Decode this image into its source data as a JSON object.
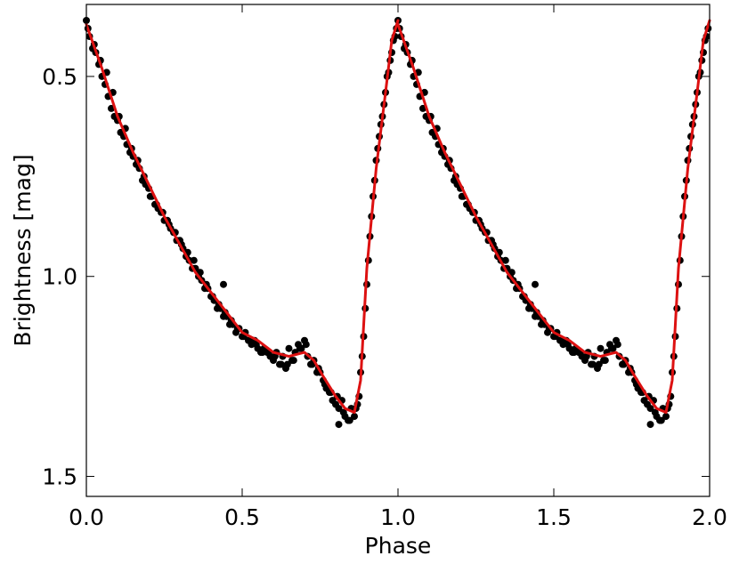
{
  "chart_data": {
    "type": "scatter",
    "title": "",
    "xlabel": "Phase",
    "ylabel": "Brightness [mag]",
    "xlim": [
      0.0,
      2.0
    ],
    "ylim": [
      0.32,
      1.55
    ],
    "y_inverted": true,
    "xticks": [
      "0.0",
      "0.5",
      "1.0",
      "1.5",
      "2.0"
    ],
    "yticks": [
      "0.5",
      "1.0",
      "1.5"
    ],
    "grid": false,
    "legend": "none",
    "colors": {
      "points": "#000000",
      "fit": "#dd1111"
    },
    "fit_curve": {
      "phase": [
        0.0,
        0.05,
        0.1,
        0.15,
        0.2,
        0.25,
        0.3,
        0.35,
        0.4,
        0.45,
        0.5,
        0.55,
        0.6,
        0.65,
        0.7,
        0.73,
        0.76,
        0.8,
        0.83,
        0.86,
        0.88,
        0.9,
        0.93,
        0.96,
        0.98,
        1.0
      ],
      "mag": [
        0.37,
        0.48,
        0.6,
        0.69,
        0.77,
        0.85,
        0.92,
        0.99,
        1.04,
        1.09,
        1.14,
        1.16,
        1.19,
        1.2,
        1.19,
        1.21,
        1.25,
        1.3,
        1.33,
        1.34,
        1.26,
        0.98,
        0.73,
        0.54,
        0.41,
        0.36
      ]
    },
    "scatter_series": {
      "name": "",
      "phase": [
        0.0,
        0.01,
        0.02,
        0.03,
        0.04,
        0.05,
        0.06,
        0.07,
        0.08,
        0.09,
        0.1,
        0.11,
        0.12,
        0.13,
        0.14,
        0.15,
        0.16,
        0.17,
        0.18,
        0.19,
        0.2,
        0.21,
        0.22,
        0.23,
        0.24,
        0.25,
        0.26,
        0.27,
        0.28,
        0.29,
        0.3,
        0.31,
        0.32,
        0.33,
        0.34,
        0.35,
        0.36,
        0.37,
        0.38,
        0.39,
        0.4,
        0.41,
        0.42,
        0.43,
        0.44,
        0.45,
        0.46,
        0.47,
        0.48,
        0.49,
        0.5,
        0.51,
        0.52,
        0.53,
        0.54,
        0.55,
        0.56,
        0.57,
        0.58,
        0.59,
        0.6,
        0.61,
        0.62,
        0.63,
        0.64,
        0.65,
        0.66,
        0.67,
        0.68,
        0.69,
        0.7,
        0.71,
        0.72,
        0.73,
        0.74,
        0.75,
        0.76,
        0.77,
        0.78,
        0.79,
        0.8,
        0.81,
        0.82,
        0.83,
        0.84,
        0.85,
        0.86,
        0.87,
        0.88,
        0.89,
        0.9,
        0.91,
        0.92,
        0.93,
        0.94,
        0.95,
        0.96,
        0.97,
        0.98,
        0.99,
        0.005,
        0.025,
        0.045,
        0.065,
        0.085,
        0.105,
        0.125,
        0.145,
        0.165,
        0.185,
        0.205,
        0.225,
        0.245,
        0.265,
        0.285,
        0.305,
        0.325,
        0.345,
        0.365,
        0.385,
        0.405,
        0.425,
        0.445,
        0.465,
        0.485,
        0.505,
        0.525,
        0.545,
        0.565,
        0.585,
        0.605,
        0.625,
        0.645,
        0.665,
        0.685,
        0.705,
        0.725,
        0.745,
        0.765,
        0.785,
        0.805,
        0.825,
        0.845,
        0.865,
        0.875,
        0.885,
        0.895,
        0.905,
        0.915,
        0.925,
        0.935,
        0.945,
        0.955,
        0.965,
        0.975,
        0.985,
        0.995,
        0.44,
        0.81
      ],
      "mag": [
        0.36,
        0.4,
        0.43,
        0.44,
        0.47,
        0.5,
        0.52,
        0.55,
        0.58,
        0.6,
        0.61,
        0.64,
        0.65,
        0.67,
        0.69,
        0.7,
        0.72,
        0.73,
        0.76,
        0.77,
        0.78,
        0.8,
        0.82,
        0.83,
        0.84,
        0.86,
        0.86,
        0.88,
        0.89,
        0.91,
        0.91,
        0.93,
        0.95,
        0.96,
        0.98,
        0.98,
        1.0,
        1.01,
        1.03,
        1.03,
        1.05,
        1.06,
        1.08,
        1.08,
        1.1,
        1.1,
        1.12,
        1.12,
        1.14,
        1.13,
        1.15,
        1.14,
        1.16,
        1.17,
        1.16,
        1.18,
        1.19,
        1.18,
        1.19,
        1.2,
        1.21,
        1.19,
        1.22,
        1.2,
        1.23,
        1.18,
        1.21,
        1.19,
        1.17,
        1.18,
        1.16,
        1.2,
        1.22,
        1.21,
        1.24,
        1.24,
        1.26,
        1.28,
        1.29,
        1.31,
        1.32,
        1.33,
        1.31,
        1.35,
        1.36,
        1.33,
        1.35,
        1.32,
        1.24,
        1.15,
        1.02,
        0.9,
        0.8,
        0.71,
        0.65,
        0.6,
        0.54,
        0.49,
        0.44,
        0.4,
        0.38,
        0.42,
        0.46,
        0.49,
        0.54,
        0.6,
        0.63,
        0.68,
        0.71,
        0.75,
        0.8,
        0.82,
        0.84,
        0.87,
        0.89,
        0.92,
        0.94,
        0.96,
        0.99,
        1.02,
        1.05,
        1.07,
        1.09,
        1.11,
        1.13,
        1.15,
        1.16,
        1.17,
        1.19,
        1.19,
        1.2,
        1.22,
        1.22,
        1.21,
        1.18,
        1.17,
        1.22,
        1.23,
        1.27,
        1.29,
        1.3,
        1.34,
        1.36,
        1.33,
        1.3,
        1.2,
        1.08,
        0.96,
        0.85,
        0.76,
        0.68,
        0.62,
        0.57,
        0.5,
        0.46,
        0.41,
        0.38,
        1.02,
        1.37
      ]
    }
  }
}
